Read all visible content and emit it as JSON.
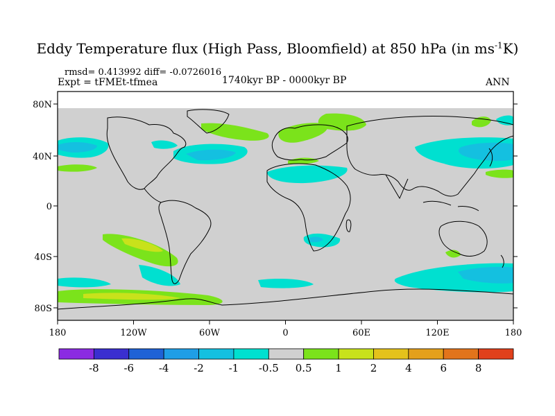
{
  "title": "Eddy Temperature flux (High Pass, Bloomfield) at 850 hPa (in ms",
  "title_sup": "-1",
  "title_end": "K)",
  "stats": "rmsd= 0.413992 diff= -0.0726016",
  "experiment": "Expt = tFMEt-tfmea",
  "period": "1740kyr BP - 0000kyr BP",
  "season": "ANN",
  "lat_labels": [
    "80N",
    "40N",
    "0",
    "40S",
    "80S"
  ],
  "lon_labels": [
    "180",
    "120W",
    "60W",
    "0",
    "60E",
    "120E",
    "180"
  ],
  "colorbar": {
    "labels": [
      "-8",
      "-6",
      "-4",
      "-2",
      "-1",
      "-0.5",
      "0.5",
      "1",
      "2",
      "4",
      "6",
      "8"
    ],
    "colors": [
      "#8b2be2",
      "#3a2fd0",
      "#1f62d6",
      "#1f9ee6",
      "#14c0e0",
      "#00e0d0",
      "#d0d0d0",
      "#7be31b",
      "#c8e21b",
      "#e4c21b",
      "#e4a01b",
      "#e2741b",
      "#e0401b"
    ]
  },
  "colors": {
    "land_gray": "#d0d0d0",
    "cyan": "#00e0d0",
    "blue": "#14c0e0",
    "green": "#7be31b",
    "yellow": "#c8e21b"
  }
}
